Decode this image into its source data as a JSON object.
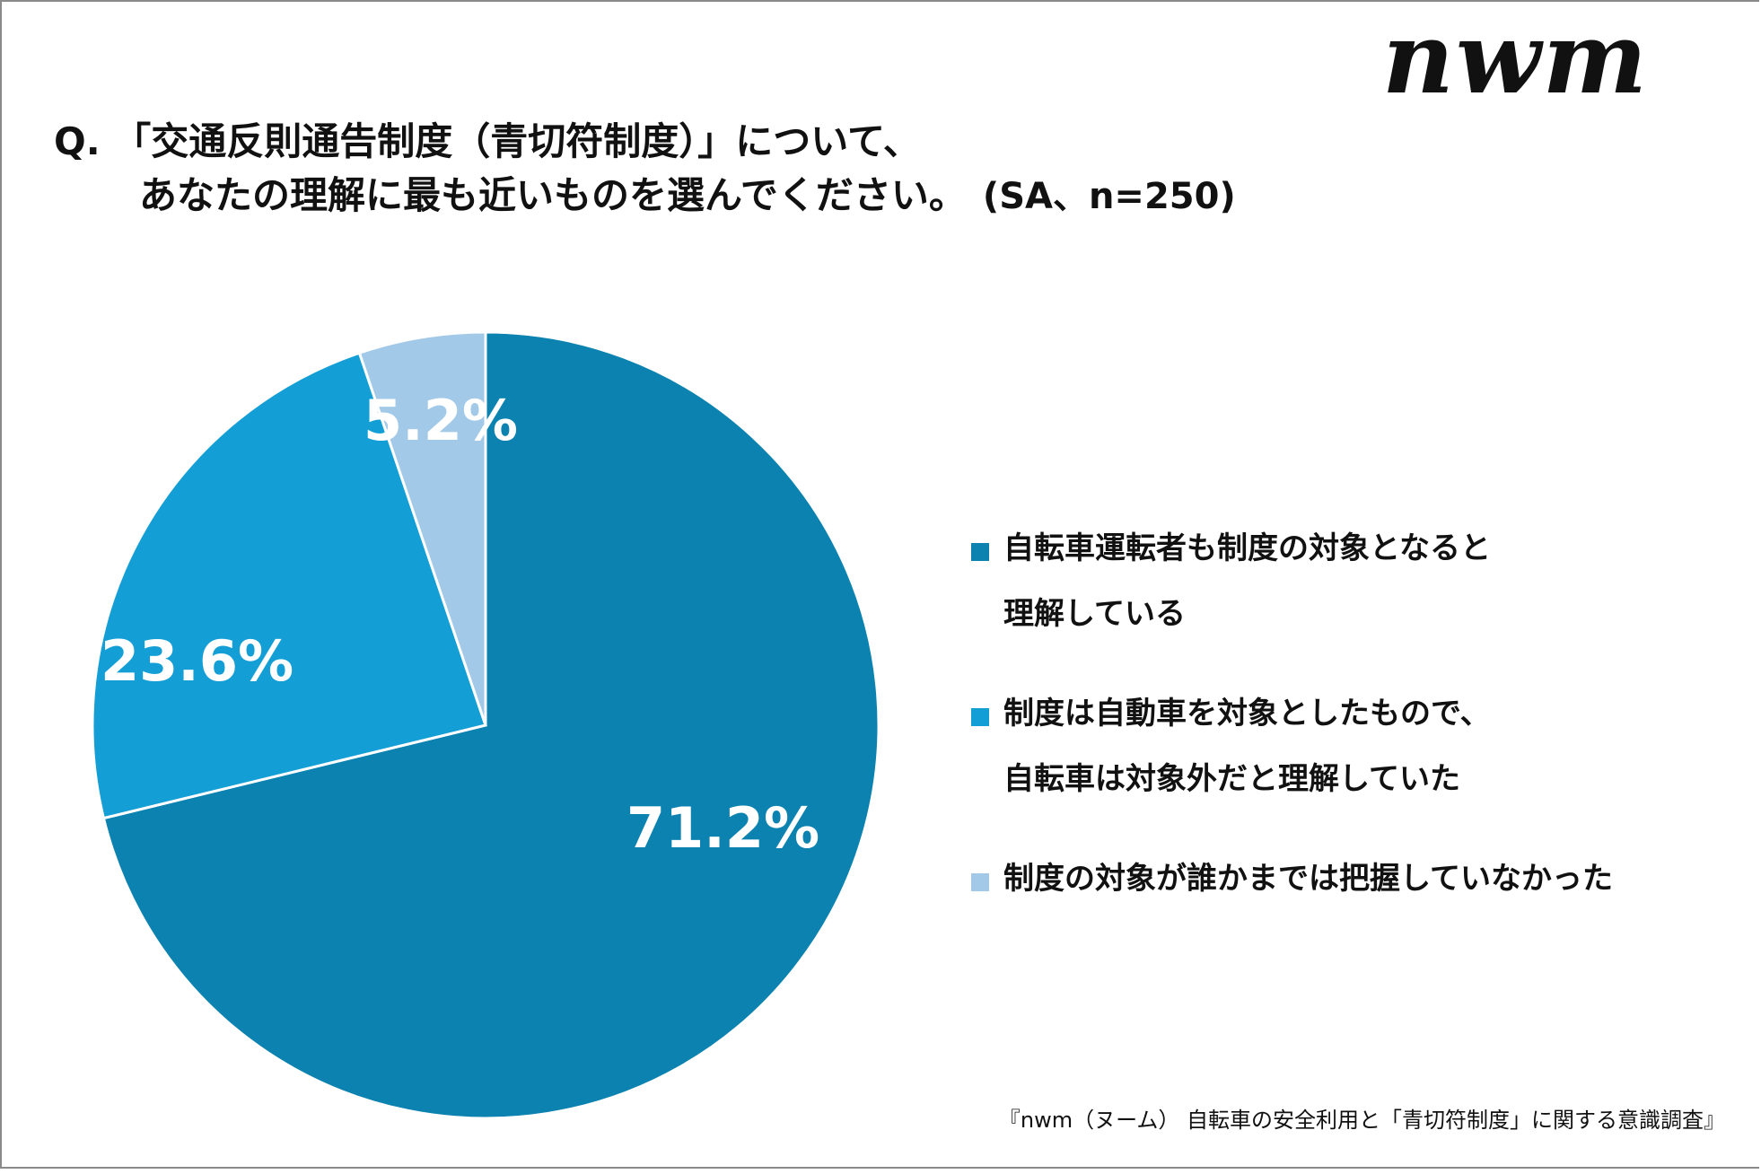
{
  "logo_text": "nwm",
  "title": {
    "line1": "Q. 「交通反則通告制度（青切符制度）」について、",
    "line2": "あなたの理解に最も近いものを選んでください。",
    "note": "(SA、n=250)"
  },
  "chart_data": {
    "type": "pie",
    "start": "12 o'clock, clockwise",
    "categories": [
      "自転車運転者も制度の対象となると理解している",
      "制度は自動車を対象としたもので、自転車は対象外だと理解していた",
      "制度の対象が誰かまでは把握していなかった"
    ],
    "values": [
      71.2,
      23.6,
      5.2
    ],
    "data_labels": [
      "71.2%",
      "23.6%",
      "5.2%"
    ],
    "colors": [
      "#0B82B0",
      "#139FD6",
      "#A2C9E7"
    ],
    "legend_placement": "right",
    "legend": [
      {
        "lines": [
          "自転車運転者も制度の対象となると",
          "理解している"
        ]
      },
      {
        "lines": [
          "制度は自動車を対象としたもので、",
          "自転車は対象外だと理解していた"
        ]
      },
      {
        "lines": [
          "制度の対象が誰かまでは把握していなかった"
        ]
      }
    ]
  },
  "source": "『nwm（ヌーム） 自転車の安全利用と「青切符制度」に関する意識調査』"
}
